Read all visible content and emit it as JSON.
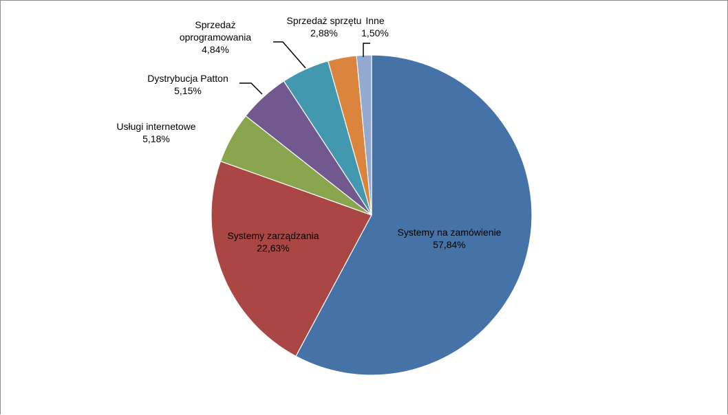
{
  "chart_data": {
    "type": "pie",
    "title": "",
    "legend": "none",
    "slices": [
      {
        "label": "Systemy na zamówienie",
        "value": 57.84,
        "value_label": "57,84%",
        "color": "#4572a7"
      },
      {
        "label": "Systemy zarządzania",
        "value": 22.63,
        "value_label": "22,63%",
        "color": "#aa4643"
      },
      {
        "label": "Usługi internetowe",
        "value": 5.18,
        "value_label": "5,18%",
        "color": "#89a54e"
      },
      {
        "label": "Dystrybucja Patton",
        "value": 5.15,
        "value_label": "5,15%",
        "color": "#71588f"
      },
      {
        "label": "Sprzedaż oprogramowania",
        "label_lines": [
          "Sprzedaż",
          "oprogramowania"
        ],
        "value": 4.84,
        "value_label": "4,84%",
        "color": "#4198af"
      },
      {
        "label": "Sprzedaż sprzętu",
        "value": 2.88,
        "value_label": "2,88%",
        "color": "#db843d"
      },
      {
        "label": "Inne",
        "value": 1.5,
        "value_label": "1,50%",
        "color": "#93a9cf"
      }
    ]
  }
}
